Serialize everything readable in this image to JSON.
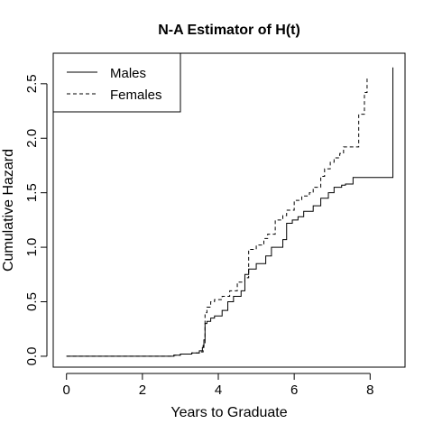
{
  "chart_data": {
    "type": "line",
    "step": true,
    "title": "N-A Estimator of H(t)",
    "xlabel": "Years to Graduate",
    "ylabel": "Cumulative Hazard",
    "xlim": [
      -0.35,
      8.92
    ],
    "ylim": [
      -0.1,
      2.78
    ],
    "x_ticks": [
      0,
      2,
      4,
      6,
      8
    ],
    "y_ticks": [
      0.0,
      0.5,
      1.0,
      1.5,
      2.0,
      2.5
    ],
    "x_tick_labels": [
      "0",
      "2",
      "4",
      "6",
      "8"
    ],
    "y_tick_labels": [
      "0.0",
      "0.5",
      "1.0",
      "1.5",
      "2.0",
      "2.5"
    ],
    "grid": false,
    "legend_position": "top-left",
    "series": [
      {
        "name": "Males",
        "line_style": "solid",
        "color": "#000000",
        "x": [
          0,
          2.83,
          3.0,
          3.3,
          3.5,
          3.58,
          3.62,
          3.65,
          3.7,
          3.8,
          3.9,
          4.1,
          4.25,
          4.4,
          4.6,
          4.7,
          4.8,
          5.0,
          5.25,
          5.4,
          5.7,
          5.8,
          5.95,
          6.1,
          6.25,
          6.5,
          6.7,
          6.9,
          7.05,
          7.25,
          7.35,
          7.55,
          8.58,
          8.6
        ],
        "y": [
          0,
          0.01,
          0.02,
          0.03,
          0.05,
          0.08,
          0.15,
          0.3,
          0.32,
          0.35,
          0.37,
          0.42,
          0.5,
          0.55,
          0.6,
          0.75,
          0.8,
          0.85,
          0.92,
          1.0,
          1.07,
          1.22,
          1.25,
          1.28,
          1.33,
          1.38,
          1.45,
          1.5,
          1.55,
          1.57,
          1.58,
          1.64,
          1.64,
          2.65
        ]
      },
      {
        "name": "Females",
        "line_style": "dashed",
        "color": "#000000",
        "x": [
          0,
          2.83,
          3.0,
          3.3,
          3.5,
          3.6,
          3.65,
          3.7,
          3.8,
          3.9,
          4.1,
          4.3,
          4.5,
          4.7,
          4.8,
          5.0,
          5.2,
          5.3,
          5.5,
          5.7,
          5.8,
          6.0,
          6.2,
          6.4,
          6.5,
          6.7,
          6.8,
          6.95,
          7.05,
          7.2,
          7.3,
          7.5,
          7.7,
          7.85,
          7.92
        ],
        "y": [
          0,
          0.01,
          0.02,
          0.03,
          0.04,
          0.1,
          0.4,
          0.45,
          0.5,
          0.52,
          0.55,
          0.6,
          0.68,
          0.72,
          0.98,
          1.02,
          1.08,
          1.12,
          1.25,
          1.29,
          1.34,
          1.43,
          1.47,
          1.5,
          1.55,
          1.65,
          1.72,
          1.78,
          1.82,
          1.86,
          1.92,
          1.92,
          2.22,
          2.42,
          2.55
        ]
      }
    ]
  }
}
